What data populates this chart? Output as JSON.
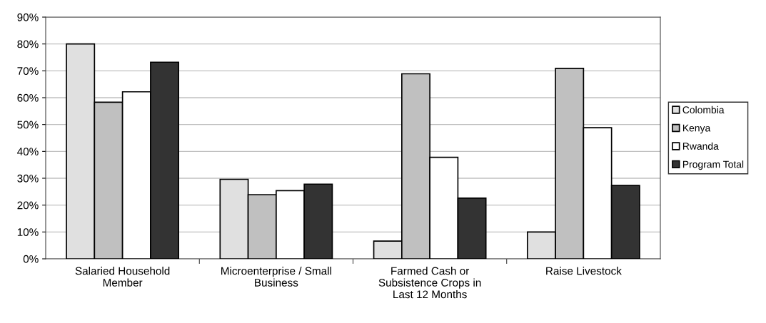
{
  "chart_data": {
    "type": "bar",
    "categories": [
      "Salaried Household\nMember",
      "Microenterprise / Small\nBusiness",
      "Farmed Cash or\nSubsistence Crops in\nLast 12 Months",
      "Raise Livestock"
    ],
    "series": [
      {
        "name": "Colombia",
        "color": "#e0e0e0",
        "values": [
          80.0,
          29.6,
          6.6,
          10.0
        ]
      },
      {
        "name": "Kenya",
        "color": "#c0c0c0",
        "values": [
          58.3,
          23.9,
          68.9,
          70.9
        ]
      },
      {
        "name": "Rwanda",
        "color": "#ffffff",
        "values": [
          62.2,
          25.4,
          37.8,
          48.8
        ]
      },
      {
        "name": "Program Total",
        "color": "#333333",
        "values": [
          73.2,
          27.8,
          22.6,
          27.3
        ]
      }
    ],
    "ylim": [
      0,
      90
    ],
    "yticks": [
      {
        "value": 0,
        "label": "0%"
      },
      {
        "value": 10,
        "label": "10%"
      },
      {
        "value": 20,
        "label": "20%"
      },
      {
        "value": 30,
        "label": "30%"
      },
      {
        "value": 40,
        "label": "40%"
      },
      {
        "value": 50,
        "label": "50%"
      },
      {
        "value": 60,
        "label": "60%"
      },
      {
        "value": 70,
        "label": "70%"
      },
      {
        "value": 80,
        "label": "80%"
      },
      {
        "value": 90,
        "label": "90%"
      }
    ],
    "grid": "y",
    "legend": "right"
  }
}
